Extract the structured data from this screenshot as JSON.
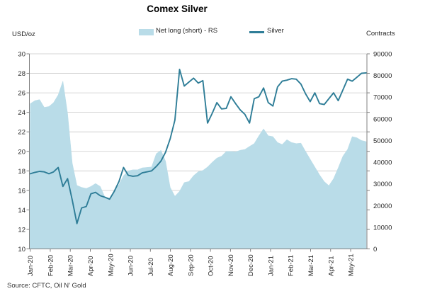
{
  "title": "Comex Silver",
  "source": "Source: CFTC, Oil N' Gold",
  "legend": [
    {
      "label": "Net long (short) - RS",
      "swatch": "area"
    },
    {
      "label": "Silver",
      "swatch": "line"
    }
  ],
  "colors": {
    "area_fill": "#B9DCE8",
    "line": "#2E7D97",
    "gridline": "#C9C9C9",
    "axis": "#808080",
    "label_text": "#262626"
  },
  "chart_data": {
    "type": "combo",
    "title": "Comex Silver",
    "grid": "horizontal only",
    "legend_position": "top",
    "left_axis": {
      "label": "USD/oz",
      "min": 10,
      "max": 30,
      "step": 2
    },
    "right_axis": {
      "label": "Contracts",
      "min": 0,
      "max": 90000,
      "step": 10000
    },
    "x_tick_labels": [
      "Jan-20",
      "Feb-20",
      "Mar-20",
      "Apr-20",
      "May-20",
      "Jun-20",
      "Jul-20",
      "Aug-20",
      "Sep-20",
      "Oct-20",
      "Nov-20",
      "Dec-20",
      "Jan-21",
      "Feb-21",
      "Mar-21",
      "Apr-21",
      "May-21"
    ],
    "series": [
      {
        "name": "Net long (short) - RS",
        "type": "area",
        "axis": "right",
        "color": "#B9DCE8",
        "values": [
          67000,
          68400,
          68900,
          65300,
          65700,
          67500,
          71100,
          77400,
          62600,
          39600,
          29300,
          28400,
          27900,
          28800,
          30200,
          28800,
          23900,
          23400,
          26600,
          29700,
          33800,
          36000,
          36500,
          36500,
          37400,
          37600,
          37800,
          43900,
          45500,
          40500,
          28400,
          24300,
          26600,
          30600,
          31100,
          33800,
          35600,
          36200,
          37800,
          40000,
          41900,
          42800,
          45000,
          45000,
          44800,
          45500,
          45900,
          47300,
          48600,
          52200,
          55400,
          52200,
          51800,
          49100,
          48200,
          50400,
          49100,
          48600,
          48800,
          45000,
          41400,
          37800,
          34200,
          31100,
          29200,
          32400,
          37400,
          42800,
          45900,
          51800,
          51300,
          50000,
          49500
        ]
      },
      {
        "name": "Silver",
        "type": "line",
        "axis": "left",
        "color": "#2E7D97",
        "values": [
          17.7,
          17.85,
          17.95,
          17.9,
          17.7,
          17.9,
          18.35,
          16.4,
          17.2,
          15.0,
          12.6,
          14.2,
          14.35,
          15.65,
          15.8,
          15.45,
          15.3,
          15.1,
          15.9,
          16.9,
          18.35,
          17.55,
          17.45,
          17.5,
          17.8,
          17.9,
          18.0,
          18.45,
          19.0,
          19.9,
          21.3,
          23.2,
          28.4,
          26.7,
          27.1,
          27.5,
          27.0,
          27.25,
          22.9,
          23.9,
          25.0,
          24.35,
          24.4,
          25.6,
          24.9,
          24.25,
          23.8,
          22.9,
          25.4,
          25.6,
          26.5,
          25.0,
          24.65,
          26.6,
          27.2,
          27.3,
          27.45,
          27.4,
          26.9,
          25.9,
          25.1,
          26.0,
          24.9,
          24.8,
          25.4,
          26.0,
          25.2,
          26.3,
          27.4,
          27.2,
          27.6,
          28.0,
          28.05
        ]
      }
    ]
  }
}
